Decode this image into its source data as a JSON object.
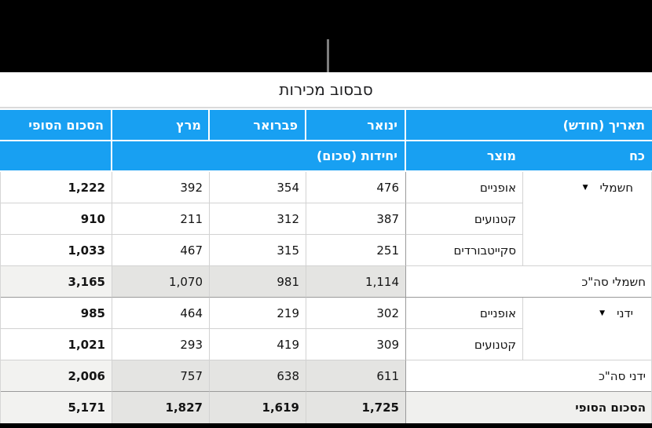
{
  "title": "סבסוב מכירות",
  "icons": {
    "disclosure": "▼"
  },
  "colors": {
    "header_blue": "#18A0F2",
    "subtotal_value_bg": "#E4E4E2",
    "subtotal_total_bg": "#F2F2F0",
    "grand_label_bg": "#F0F0EE",
    "grid_light": "#D2D2D2",
    "grid_dark": "#9A9A9A",
    "callout_gray": "#7D7D7D"
  },
  "pivot": {
    "header": {
      "date_field": "תאריך (חודש)",
      "months": [
        "ינואר",
        "פברואר",
        "מרץ"
      ],
      "grand_total_label": "הסכום הסופי",
      "power_field": "כח",
      "product_field": "מוצר",
      "values_label": "יחידות (סכום)"
    },
    "groups": [
      {
        "name": "חשמלי",
        "rows": [
          {
            "product": "אופניים",
            "values": [
              "476",
              "354",
              "392"
            ],
            "total": "1,222"
          },
          {
            "product": "קטנועים",
            "values": [
              "387",
              "312",
              "211"
            ],
            "total": "910"
          },
          {
            "product": "סקייטבורדים",
            "values": [
              "251",
              "315",
              "467"
            ],
            "total": "1,033"
          }
        ],
        "subtotal": {
          "label": "חשמלי סה\"כ",
          "values": [
            "1,114",
            "981",
            "1,070"
          ],
          "total": "3,165"
        }
      },
      {
        "name": "ידני",
        "rows": [
          {
            "product": "אופניים",
            "values": [
              "302",
              "219",
              "464"
            ],
            "total": "985"
          },
          {
            "product": "קטנועים",
            "values": [
              "309",
              "419",
              "293"
            ],
            "total": "1,021"
          }
        ],
        "subtotal": {
          "label": "ידני סה\"כ",
          "values": [
            "611",
            "638",
            "757"
          ],
          "total": "2,006"
        }
      }
    ],
    "grand_total": {
      "label": "הסכום הסופי",
      "values": [
        "1,725",
        "1,619",
        "1,827"
      ],
      "total": "5,171"
    }
  }
}
